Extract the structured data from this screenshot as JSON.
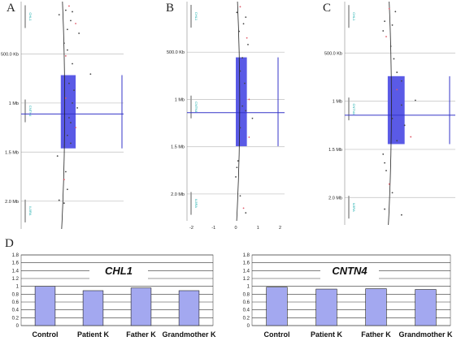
{
  "panel_labels": [
    "A",
    "B",
    "C",
    "D"
  ],
  "colors": {
    "box_fill": "#5a5ae6",
    "line": "#3535c8",
    "grid": "#c8c8c8",
    "bar_fill": "#a3a8f0",
    "bar_stroke": "#222222",
    "gene_text": "#22aaaa",
    "gene_bar": "#999999"
  },
  "chart_data": [
    {
      "id": "A",
      "type": "scatter",
      "title": "",
      "genome_ticks": [
        "500.0 Kb",
        "1 Mb",
        "1.5 Mb",
        "2.0 Mb"
      ],
      "genes": [
        "CHL1",
        "CNTN4",
        "IL5RA"
      ],
      "box": {
        "x_low": 0.0,
        "x_high": 0.45,
        "y_top_kb": 716,
        "y_bottom_kb": 1462
      },
      "vertical_mean_x": 0.1,
      "horizontal_line_kb": 1112,
      "x_range": [
        -1.2,
        1.9
      ],
      "points": [
        {
          "x": 0.25,
          "y_kb": 12
        },
        {
          "x": 0.15,
          "y_kb": 55
        },
        {
          "x": 0.35,
          "y_kb": 70
        },
        {
          "x": -0.05,
          "y_kb": 100
        },
        {
          "x": 0.3,
          "y_kb": 160
        },
        {
          "x": 0.45,
          "y_kb": 190
        },
        {
          "x": 0.2,
          "y_kb": 250
        },
        {
          "x": 0.55,
          "y_kb": 290
        },
        {
          "x": 0.1,
          "y_kb": 390
        },
        {
          "x": 0.2,
          "y_kb": 460
        },
        {
          "x": 0.15,
          "y_kb": 520
        },
        {
          "x": 0.35,
          "y_kb": 600
        },
        {
          "x": 0.9,
          "y_kb": 705
        },
        {
          "x": 0.25,
          "y_kb": 800
        },
        {
          "x": 0.4,
          "y_kb": 870
        },
        {
          "x": 0.15,
          "y_kb": 950
        },
        {
          "x": 0.35,
          "y_kb": 1000
        },
        {
          "x": 0.5,
          "y_kb": 1050
        },
        {
          "x": 0.25,
          "y_kb": 1150
        },
        {
          "x": 0.3,
          "y_kb": 1200
        },
        {
          "x": 0.45,
          "y_kb": 1250
        },
        {
          "x": 0.2,
          "y_kb": 1330
        },
        {
          "x": 0.3,
          "y_kb": 1410
        },
        {
          "x": -0.1,
          "y_kb": 1540
        },
        {
          "x": 0.15,
          "y_kb": 1700
        },
        {
          "x": 0.1,
          "y_kb": 1780
        },
        {
          "x": 0.2,
          "y_kb": 1880
        },
        {
          "x": -0.05,
          "y_kb": 1990
        },
        {
          "x": 0.1,
          "y_kb": 2020
        }
      ]
    },
    {
      "id": "B",
      "type": "scatter",
      "title": "",
      "genome_ticks": [
        "500.0 Kb",
        "1 Mb",
        "1.5 Mb",
        "2.0 Mb"
      ],
      "genes": [
        "CHL1",
        "CNTN4",
        "IL5RA"
      ],
      "x_ticks": [
        -2,
        -1,
        0,
        1,
        2
      ],
      "box": {
        "x_low": 0.0,
        "x_high": 0.5,
        "y_top_kb": 555,
        "y_bottom_kb": 1495
      },
      "vertical_mean_x": 0.15,
      "horizontal_line_kb": 1140,
      "x_range": [
        -2.2,
        2.2
      ],
      "points": [
        {
          "x": 0.2,
          "y_kb": 20
        },
        {
          "x": 0.05,
          "y_kb": 80
        },
        {
          "x": 0.45,
          "y_kb": 130
        },
        {
          "x": 0.35,
          "y_kb": 200
        },
        {
          "x": 0.15,
          "y_kb": 280
        },
        {
          "x": 0.5,
          "y_kb": 350
        },
        {
          "x": 0.55,
          "y_kb": 420
        },
        {
          "x": 0.3,
          "y_kb": 560
        },
        {
          "x": 0.2,
          "y_kb": 700
        },
        {
          "x": 0.4,
          "y_kb": 830
        },
        {
          "x": 0.6,
          "y_kb": 1000
        },
        {
          "x": 0.3,
          "y_kb": 1070
        },
        {
          "x": 0.45,
          "y_kb": 1120
        },
        {
          "x": 0.75,
          "y_kb": 1200
        },
        {
          "x": 0.2,
          "y_kb": 1300
        },
        {
          "x": 0.6,
          "y_kb": 1400
        },
        {
          "x": 0.1,
          "y_kb": 1650
        },
        {
          "x": 0.05,
          "y_kb": 1720
        },
        {
          "x": 0.0,
          "y_kb": 1820
        },
        {
          "x": 0.2,
          "y_kb": 2020
        },
        {
          "x": 0.35,
          "y_kb": 2150
        },
        {
          "x": 0.45,
          "y_kb": 2200
        }
      ]
    },
    {
      "id": "C",
      "type": "scatter",
      "title": "",
      "genome_ticks": [
        "500.0 Kb",
        "1 Mb",
        "1.5 Mb",
        "2.0 Mb"
      ],
      "genes": [
        "CHL1",
        "CNTN4",
        "IL5RA"
      ],
      "box": {
        "x_low": 0.0,
        "x_high": 0.55,
        "y_top_kb": 740,
        "y_bottom_kb": 1445
      },
      "vertical_mean_x": 0.1,
      "horizontal_line_kb": 1145,
      "x_range": [
        -1.4,
        2.2
      ],
      "points": [
        {
          "x": 0.05,
          "y_kb": 40
        },
        {
          "x": 0.25,
          "y_kb": 70
        },
        {
          "x": -0.1,
          "y_kb": 170
        },
        {
          "x": 0.15,
          "y_kb": 210
        },
        {
          "x": -0.15,
          "y_kb": 270
        },
        {
          "x": -0.05,
          "y_kb": 330
        },
        {
          "x": 0.1,
          "y_kb": 430
        },
        {
          "x": 0.2,
          "y_kb": 560
        },
        {
          "x": 0.3,
          "y_kb": 700
        },
        {
          "x": 0.45,
          "y_kb": 790
        },
        {
          "x": 0.3,
          "y_kb": 880
        },
        {
          "x": 0.9,
          "y_kb": 990
        },
        {
          "x": 0.45,
          "y_kb": 1040
        },
        {
          "x": 0.15,
          "y_kb": 1180
        },
        {
          "x": 0.55,
          "y_kb": 1250
        },
        {
          "x": 0.75,
          "y_kb": 1370
        },
        {
          "x": 0.3,
          "y_kb": 1410
        },
        {
          "x": -0.15,
          "y_kb": 1550
        },
        {
          "x": -0.1,
          "y_kb": 1640
        },
        {
          "x": -0.05,
          "y_kb": 1720
        },
        {
          "x": 0.05,
          "y_kb": 1860
        },
        {
          "x": 0.15,
          "y_kb": 1950
        },
        {
          "x": -0.1,
          "y_kb": 2120
        },
        {
          "x": 0.45,
          "y_kb": 2180
        }
      ]
    },
    {
      "id": "D-left",
      "type": "bar",
      "title": "CHL1",
      "xlabel": "",
      "ylabel": "",
      "categories": [
        "Control",
        "Patient K",
        "Father K",
        "Grandmother K"
      ],
      "values": [
        1.0,
        0.89,
        0.96,
        0.89
      ],
      "ylim": [
        0,
        1.8
      ],
      "yticks": [
        "0",
        "0.2",
        "0.4",
        "0.6",
        "0.8",
        "1",
        "1.2",
        "1.4",
        "1.6",
        "1.8"
      ],
      "grid": true
    },
    {
      "id": "D-right",
      "type": "bar",
      "title": "CNTN4",
      "xlabel": "",
      "ylabel": "",
      "categories": [
        "Control",
        "Patient K",
        "Father K",
        "Grandmother K"
      ],
      "values": [
        0.98,
        0.93,
        0.94,
        0.92
      ],
      "ylim": [
        0,
        1.8
      ],
      "yticks": [
        "0",
        "0.2",
        "0.4",
        "0.6",
        "0.8",
        "1",
        "1.2",
        "1.4",
        "1.6",
        "1.8"
      ],
      "grid": true
    }
  ]
}
